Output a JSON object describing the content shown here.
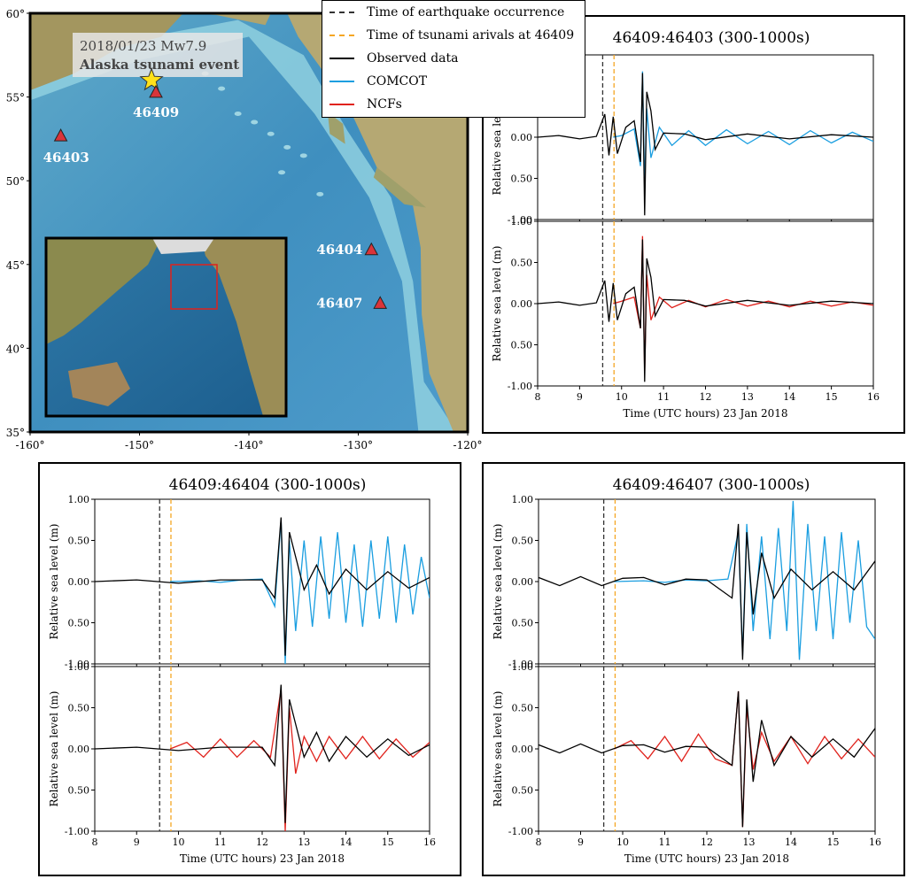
{
  "legend": {
    "items": [
      {
        "label": "Time of earthquake occurrence",
        "color": "#333333",
        "style": "dashed"
      },
      {
        "label": "Time of tsunami arivals at 46409",
        "color": "#f5a623",
        "style": "dashed"
      },
      {
        "label": "Observed data",
        "color": "#000000",
        "style": "solid"
      },
      {
        "label": "COMCOT",
        "color": "#1a9ee0",
        "style": "solid"
      },
      {
        "label": "NCFs",
        "color": "#e0221c",
        "style": "solid"
      }
    ]
  },
  "map": {
    "event_line1": "2018/01/23 Mw7.9",
    "event_line2": "Alaska tsunami event",
    "lat_ticks": [
      "60°",
      "55°",
      "50°",
      "45°",
      "40°",
      "35°"
    ],
    "lon_ticks": [
      "-160°",
      "-150°",
      "-140°",
      "-130°",
      "-120°"
    ],
    "epicenter": {
      "lon": -148.9,
      "lat": 56.0
    },
    "stations": [
      {
        "id": "46409",
        "lon": -148.5,
        "lat": 55.3
      },
      {
        "id": "46403",
        "lon": -157.2,
        "lat": 52.7
      },
      {
        "id": "46404",
        "lon": -128.8,
        "lat": 45.9
      },
      {
        "id": "46407",
        "lon": -128.0,
        "lat": 42.7
      }
    ]
  },
  "chart_data": [
    {
      "type": "line",
      "title": "46409:46403 (300-1000s)",
      "xlabel": "Time (UTC hours) 23 Jan 2018",
      "ylabel": "Relative sea level (m)",
      "xlim": [
        8,
        16
      ],
      "ylim": [
        -1.0,
        1.0
      ],
      "xticks": [
        "8",
        "9",
        "10",
        "11",
        "12",
        "13",
        "14",
        "15",
        "16"
      ],
      "yticks": [
        "1.00",
        "0.50",
        "0.00",
        "0.50",
        "-1.00"
      ],
      "quake_time": 9.55,
      "arrival_time": 9.82,
      "subplots": [
        {
          "series": [
            {
              "name": "Observed data",
              "color": "#000000",
              "x": [
                8.0,
                8.5,
                9.0,
                9.4,
                9.6,
                9.7,
                9.8,
                9.9,
                10.1,
                10.3,
                10.45,
                10.5,
                10.55,
                10.6,
                10.7,
                10.8,
                11.0,
                11.5,
                12.0,
                13.0,
                14.0,
                15.0,
                16.0
              ],
              "y": [
                0.0,
                0.02,
                -0.02,
                0.01,
                0.28,
                -0.22,
                0.25,
                -0.2,
                0.12,
                0.2,
                -0.3,
                0.78,
                -0.95,
                0.55,
                0.32,
                -0.15,
                0.05,
                0.04,
                -0.03,
                0.04,
                -0.02,
                0.03,
                0.0
              ]
            },
            {
              "name": "COMCOT",
              "color": "#1a9ee0",
              "x": [
                9.8,
                10.0,
                10.3,
                10.45,
                10.5,
                10.55,
                10.6,
                10.7,
                10.9,
                11.2,
                11.6,
                12.0,
                12.5,
                13.0,
                13.5,
                14.0,
                14.5,
                15.0,
                15.5,
                16.0
              ],
              "y": [
                0.0,
                0.02,
                0.1,
                -0.35,
                0.8,
                -0.6,
                0.35,
                -0.25,
                0.12,
                -0.1,
                0.08,
                -0.1,
                0.09,
                -0.08,
                0.07,
                -0.09,
                0.08,
                -0.07,
                0.06,
                -0.05
              ]
            }
          ]
        },
        {
          "series": [
            {
              "name": "Observed data",
              "color": "#000000",
              "x": [
                8.0,
                8.5,
                9.0,
                9.4,
                9.6,
                9.7,
                9.8,
                9.9,
                10.1,
                10.3,
                10.45,
                10.5,
                10.55,
                10.6,
                10.7,
                10.8,
                11.0,
                11.5,
                12.0,
                13.0,
                14.0,
                15.0,
                16.0
              ],
              "y": [
                0.0,
                0.02,
                -0.02,
                0.01,
                0.28,
                -0.22,
                0.25,
                -0.2,
                0.12,
                0.2,
                -0.3,
                0.78,
                -0.95,
                0.55,
                0.32,
                -0.15,
                0.05,
                0.04,
                -0.03,
                0.04,
                -0.02,
                0.03,
                0.0
              ]
            },
            {
              "name": "NCFs",
              "color": "#e0221c",
              "x": [
                9.8,
                10.0,
                10.3,
                10.45,
                10.5,
                10.55,
                10.6,
                10.7,
                10.9,
                11.2,
                11.6,
                12.0,
                12.5,
                13.0,
                13.5,
                14.0,
                14.5,
                15.0,
                15.5,
                16.0
              ],
              "y": [
                0.0,
                0.03,
                0.08,
                -0.3,
                0.82,
                -0.85,
                0.35,
                -0.2,
                0.08,
                -0.05,
                0.04,
                -0.04,
                0.05,
                -0.03,
                0.03,
                -0.04,
                0.03,
                -0.03,
                0.02,
                -0.02
              ]
            }
          ]
        }
      ]
    },
    {
      "type": "line",
      "title": "46409:46404 (300-1000s)",
      "xlabel": "Time (UTC hours) 23 Jan 2018",
      "ylabel": "Relative sea level (m)",
      "xlim": [
        8,
        16
      ],
      "ylim": [
        -1.0,
        1.0
      ],
      "xticks": [
        "8",
        "9",
        "10",
        "11",
        "12",
        "13",
        "14",
        "15",
        "16"
      ],
      "yticks": [
        "1.00",
        "0.50",
        "0.00",
        "0.50",
        "-1.00"
      ],
      "quake_time": 9.55,
      "arrival_time": 9.82,
      "subplots": [
        {
          "series": [
            {
              "name": "Observed data",
              "color": "#000000",
              "x": [
                8.0,
                9.0,
                10.0,
                11.0,
                12.0,
                12.3,
                12.45,
                12.55,
                12.65,
                12.8,
                13.0,
                13.3,
                13.6,
                14.0,
                14.5,
                15.0,
                15.5,
                16.0
              ],
              "y": [
                0.0,
                0.02,
                -0.02,
                0.02,
                0.02,
                -0.2,
                0.78,
                -0.9,
                0.6,
                0.3,
                -0.1,
                0.2,
                -0.15,
                0.15,
                -0.1,
                0.12,
                -0.08,
                0.05
              ]
            },
            {
              "name": "COMCOT",
              "color": "#1a9ee0",
              "x": [
                9.8,
                10.5,
                11.0,
                11.5,
                12.0,
                12.3,
                12.45,
                12.55,
                12.65,
                12.8,
                13.0,
                13.2,
                13.4,
                13.6,
                13.8,
                14.0,
                14.2,
                14.4,
                14.6,
                14.8,
                15.0,
                15.2,
                15.4,
                15.6,
                15.8,
                16.0
              ],
              "y": [
                0.0,
                0.01,
                -0.01,
                0.02,
                0.03,
                -0.3,
                0.75,
                -1.0,
                0.5,
                -0.6,
                0.5,
                -0.55,
                0.55,
                -0.45,
                0.6,
                -0.5,
                0.45,
                -0.55,
                0.5,
                -0.45,
                0.55,
                -0.5,
                0.45,
                -0.4,
                0.3,
                -0.2
              ]
            }
          ]
        },
        {
          "series": [
            {
              "name": "Observed data",
              "color": "#000000",
              "x": [
                8.0,
                9.0,
                10.0,
                11.0,
                12.0,
                12.3,
                12.45,
                12.55,
                12.65,
                12.8,
                13.0,
                13.3,
                13.6,
                14.0,
                14.5,
                15.0,
                15.5,
                16.0
              ],
              "y": [
                0.0,
                0.02,
                -0.02,
                0.02,
                0.02,
                -0.2,
                0.78,
                -0.9,
                0.6,
                0.3,
                -0.1,
                0.2,
                -0.15,
                0.15,
                -0.1,
                0.12,
                -0.08,
                0.05
              ]
            },
            {
              "name": "NCFs",
              "color": "#e0221c",
              "x": [
                9.8,
                10.2,
                10.6,
                11.0,
                11.4,
                11.8,
                12.2,
                12.45,
                12.55,
                12.65,
                12.8,
                13.0,
                13.3,
                13.6,
                14.0,
                14.4,
                14.8,
                15.2,
                15.6,
                16.0
              ],
              "y": [
                0.0,
                0.08,
                -0.1,
                0.12,
                -0.1,
                0.1,
                -0.1,
                0.72,
                -1.0,
                0.5,
                -0.3,
                0.15,
                -0.15,
                0.15,
                -0.12,
                0.15,
                -0.12,
                0.12,
                -0.1,
                0.08
              ]
            }
          ]
        }
      ]
    },
    {
      "type": "line",
      "title": "46409:46407 (300-1000s)",
      "xlabel": "Time (UTC hours) 23 Jan 2018",
      "ylabel": "Relative sea level (m)",
      "xlim": [
        8,
        16
      ],
      "ylim": [
        -1.0,
        1.0
      ],
      "xticks": [
        "8",
        "9",
        "10",
        "11",
        "12",
        "13",
        "14",
        "15",
        "16"
      ],
      "yticks": [
        "1.00",
        "0.50",
        "0.00",
        "0.50",
        "-1.00"
      ],
      "quake_time": 9.55,
      "arrival_time": 9.82,
      "subplots": [
        {
          "series": [
            {
              "name": "Observed data",
              "color": "#000000",
              "x": [
                8.0,
                8.5,
                9.0,
                9.5,
                10.0,
                10.5,
                11.0,
                11.5,
                12.0,
                12.6,
                12.75,
                12.85,
                12.95,
                13.1,
                13.3,
                13.6,
                14.0,
                14.5,
                15.0,
                15.5,
                16.0
              ],
              "y": [
                0.05,
                -0.05,
                0.06,
                -0.05,
                0.04,
                0.05,
                -0.04,
                0.03,
                0.02,
                -0.2,
                0.7,
                -0.95,
                0.6,
                -0.4,
                0.35,
                -0.2,
                0.15,
                -0.1,
                0.12,
                -0.1,
                0.25
              ]
            },
            {
              "name": "COMCOT",
              "color": "#1a9ee0",
              "x": [
                9.8,
                10.5,
                11.0,
                11.5,
                12.0,
                12.5,
                12.75,
                12.85,
                12.95,
                13.1,
                13.3,
                13.5,
                13.7,
                13.9,
                14.05,
                14.2,
                14.4,
                14.6,
                14.8,
                15.0,
                15.2,
                15.4,
                15.6,
                15.8,
                16.0
              ],
              "y": [
                0.0,
                0.01,
                -0.01,
                0.02,
                0.01,
                0.03,
                0.6,
                -0.9,
                0.7,
                -0.6,
                0.55,
                -0.7,
                0.65,
                -0.6,
                0.98,
                -0.95,
                0.7,
                -0.6,
                0.55,
                -0.7,
                0.6,
                -0.5,
                0.5,
                -0.55,
                -0.7
              ]
            }
          ]
        },
        {
          "series": [
            {
              "name": "Observed data",
              "color": "#000000",
              "x": [
                8.0,
                8.5,
                9.0,
                9.5,
                10.0,
                10.5,
                11.0,
                11.5,
                12.0,
                12.6,
                12.75,
                12.85,
                12.95,
                13.1,
                13.3,
                13.6,
                14.0,
                14.5,
                15.0,
                15.5,
                16.0
              ],
              "y": [
                0.05,
                -0.05,
                0.06,
                -0.05,
                0.04,
                0.05,
                -0.04,
                0.03,
                0.02,
                -0.2,
                0.7,
                -0.95,
                0.6,
                -0.4,
                0.35,
                -0.2,
                0.15,
                -0.1,
                0.12,
                -0.1,
                0.25
              ]
            },
            {
              "name": "NCFs",
              "color": "#e0221c",
              "x": [
                9.8,
                10.2,
                10.6,
                11.0,
                11.4,
                11.8,
                12.2,
                12.6,
                12.75,
                12.85,
                12.95,
                13.1,
                13.3,
                13.6,
                14.0,
                14.4,
                14.8,
                15.2,
                15.6,
                16.0
              ],
              "y": [
                0.0,
                0.1,
                -0.12,
                0.15,
                -0.15,
                0.18,
                -0.12,
                -0.2,
                0.7,
                -0.95,
                0.5,
                -0.25,
                0.2,
                -0.15,
                0.15,
                -0.18,
                0.15,
                -0.12,
                0.12,
                -0.1
              ]
            }
          ]
        }
      ]
    }
  ]
}
